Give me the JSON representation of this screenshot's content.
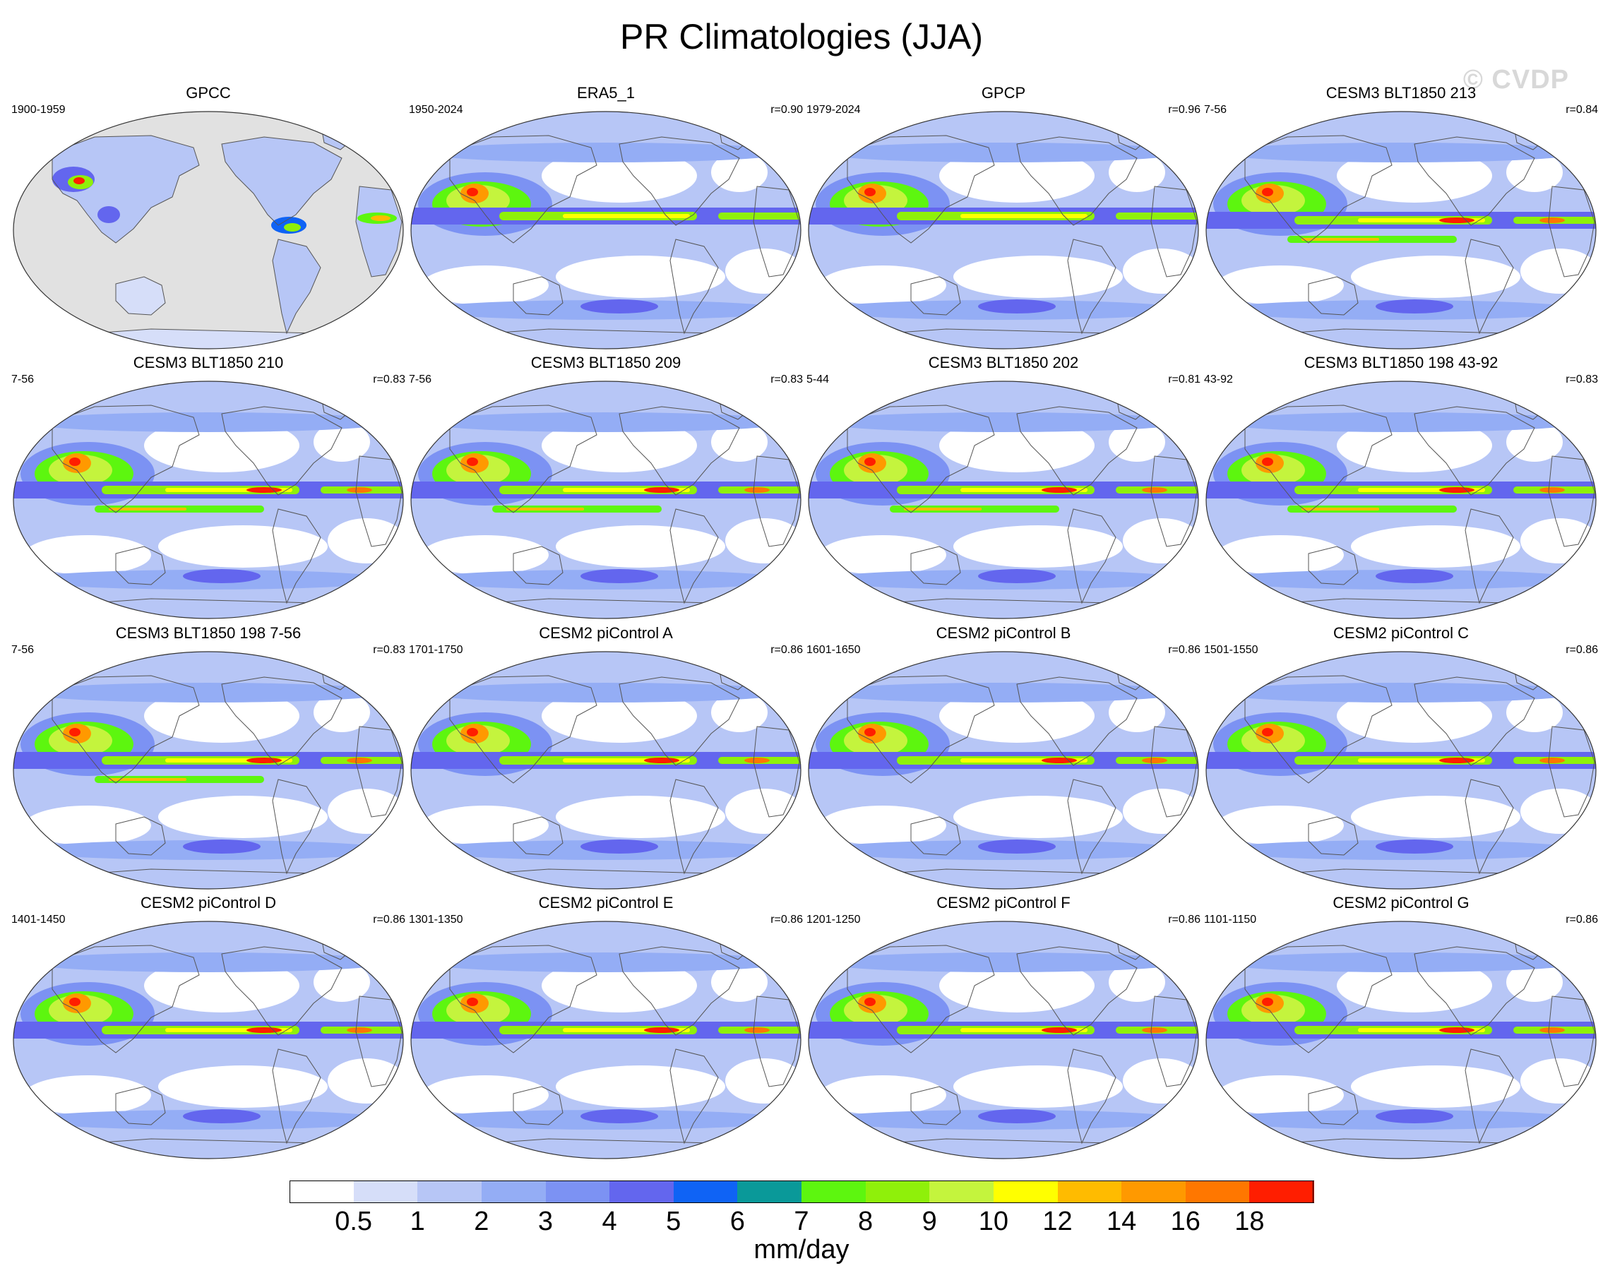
{
  "title": "PR Climatologies (JJA)",
  "watermark": "© CVDP",
  "panels": [
    {
      "title": "GPCC",
      "years": "1900-1959",
      "corr": "",
      "style": "obs-land"
    },
    {
      "title": "ERA5_1",
      "years": "1950-2024",
      "corr": "r=0.90",
      "style": "obs"
    },
    {
      "title": "GPCP",
      "years": "1979-2024",
      "corr": "r=0.96",
      "style": "obs"
    },
    {
      "title": "CESM3 BLT1850 213",
      "years": "7-56",
      "corr": "r=0.84",
      "style": "cesm3"
    },
    {
      "title": "CESM3 BLT1850 210",
      "years": "7-56",
      "corr": "r=0.83",
      "style": "cesm3"
    },
    {
      "title": "CESM3 BLT1850 209",
      "years": "7-56",
      "corr": "r=0.83",
      "style": "cesm3"
    },
    {
      "title": "CESM3 BLT1850 202",
      "years": "5-44",
      "corr": "r=0.81",
      "style": "cesm3"
    },
    {
      "title": "CESM3 BLT1850 198 43-92",
      "years": "43-92",
      "corr": "r=0.83",
      "style": "cesm3"
    },
    {
      "title": "CESM3 BLT1850 198 7-56",
      "years": "7-56",
      "corr": "r=0.83",
      "style": "cesm3"
    },
    {
      "title": "CESM2 piControl A",
      "years": "1701-1750",
      "corr": "r=0.86",
      "style": "cesm2"
    },
    {
      "title": "CESM2 piControl B",
      "years": "1601-1650",
      "corr": "r=0.86",
      "style": "cesm2"
    },
    {
      "title": "CESM2 piControl C",
      "years": "1501-1550",
      "corr": "r=0.86",
      "style": "cesm2"
    },
    {
      "title": "CESM2 piControl D",
      "years": "1401-1450",
      "corr": "r=0.86",
      "style": "cesm2"
    },
    {
      "title": "CESM2 piControl E",
      "years": "1301-1350",
      "corr": "r=0.86",
      "style": "cesm2"
    },
    {
      "title": "CESM2 piControl F",
      "years": "1201-1250",
      "corr": "r=0.86",
      "style": "cesm2"
    },
    {
      "title": "CESM2 piControl G",
      "years": "1101-1150",
      "corr": "r=0.86",
      "style": "cesm2"
    }
  ],
  "colorbar": {
    "unit": "mm/day",
    "levels": [
      "0.5",
      "1",
      "2",
      "3",
      "4",
      "5",
      "6",
      "7",
      "8",
      "9",
      "10",
      "12",
      "14",
      "16",
      "18"
    ],
    "colors": [
      "#ffffff",
      "#d6def9",
      "#b7c6f6",
      "#94adf5",
      "#7c92f3",
      "#6366ee",
      "#0f63f5",
      "#0a9999",
      "#5df60f",
      "#8ff00a",
      "#c4f43d",
      "#ffff00",
      "#ffbb00",
      "#ff9900",
      "#ff7700",
      "#ff1e00"
    ],
    "land_missing_color": "#e1e1e1"
  }
}
